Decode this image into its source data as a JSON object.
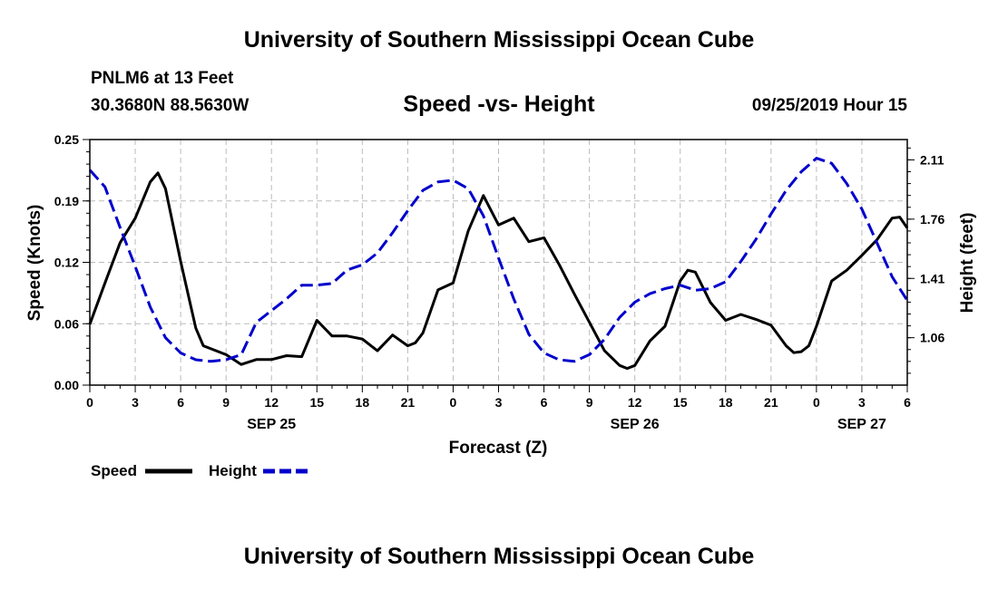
{
  "header": {
    "title": "University of Southern Mississippi Ocean Cube",
    "station": "PNLM6 at 13 Feet",
    "coordinates": "30.3680N 88.5630W",
    "datetime": "09/25/2019 Hour 15"
  },
  "footer": {
    "title": "University of Southern Mississippi Ocean Cube"
  },
  "chart_data": {
    "type": "line",
    "title": "Speed -vs- Height",
    "xlabel": "Forecast (Z)",
    "ylabel_left": "Speed (Knots)",
    "ylabel_right": "Height (feet)",
    "x_ticks": [
      {
        "t": 0,
        "label": "0"
      },
      {
        "t": 3,
        "label": "3"
      },
      {
        "t": 6,
        "label": "6"
      },
      {
        "t": 9,
        "label": "9"
      },
      {
        "t": 12,
        "label": "12"
      },
      {
        "t": 15,
        "label": "15"
      },
      {
        "t": 18,
        "label": "18"
      },
      {
        "t": 21,
        "label": "21"
      },
      {
        "t": 24,
        "label": "0"
      },
      {
        "t": 27,
        "label": "3"
      },
      {
        "t": 30,
        "label": "6"
      },
      {
        "t": 33,
        "label": "9"
      },
      {
        "t": 36,
        "label": "12"
      },
      {
        "t": 39,
        "label": "15"
      },
      {
        "t": 42,
        "label": "18"
      },
      {
        "t": 45,
        "label": "21"
      },
      {
        "t": 48,
        "label": "0"
      },
      {
        "t": 51,
        "label": "3"
      },
      {
        "t": 54,
        "label": "6"
      }
    ],
    "date_labels": [
      {
        "t": 12,
        "label": "SEP 25"
      },
      {
        "t": 36,
        "label": "SEP 26"
      },
      {
        "t": 51,
        "label": "SEP 27"
      }
    ],
    "xlim": [
      0,
      54
    ],
    "ylim_left": [
      0,
      0.25
    ],
    "yticks_left": [
      "0.00",
      "0.06",
      "0.12",
      "0.19",
      "0.25"
    ],
    "yticks_left_values": [
      0,
      0.0625,
      0.125,
      0.1875,
      0.25
    ],
    "ylim_right": [
      0.78,
      2.23
    ],
    "yticks_right": [
      "1.06",
      "1.41",
      "1.76",
      "2.11"
    ],
    "yticks_right_values": [
      1.06,
      1.41,
      1.76,
      2.11
    ],
    "grid": true,
    "legend": {
      "position": "bottom-left"
    },
    "series": [
      {
        "name": "Speed",
        "axis": "left",
        "color": "#000000",
        "dash": "solid",
        "points": [
          [
            0,
            0.062
          ],
          [
            1,
            0.104
          ],
          [
            2,
            0.145
          ],
          [
            3,
            0.17
          ],
          [
            4,
            0.207
          ],
          [
            4.5,
            0.216
          ],
          [
            5,
            0.2
          ],
          [
            6,
            0.126
          ],
          [
            7,
            0.058
          ],
          [
            7.5,
            0.04
          ],
          [
            8,
            0.037
          ],
          [
            9,
            0.031
          ],
          [
            9.5,
            0.026
          ],
          [
            10,
            0.021
          ],
          [
            11,
            0.026
          ],
          [
            12,
            0.026
          ],
          [
            13,
            0.03
          ],
          [
            14,
            0.029
          ],
          [
            15,
            0.066
          ],
          [
            16,
            0.05
          ],
          [
            17,
            0.05
          ],
          [
            18,
            0.047
          ],
          [
            19,
            0.035
          ],
          [
            20,
            0.051
          ],
          [
            21,
            0.04
          ],
          [
            21.5,
            0.043
          ],
          [
            22,
            0.053
          ],
          [
            23,
            0.097
          ],
          [
            24,
            0.104
          ],
          [
            25,
            0.157
          ],
          [
            26,
            0.193
          ],
          [
            27,
            0.163
          ],
          [
            28,
            0.17
          ],
          [
            29,
            0.146
          ],
          [
            30,
            0.15
          ],
          [
            31,
            0.123
          ],
          [
            32,
            0.093
          ],
          [
            33,
            0.064
          ],
          [
            34,
            0.035
          ],
          [
            35,
            0.02
          ],
          [
            35.5,
            0.017
          ],
          [
            36,
            0.02
          ],
          [
            37,
            0.045
          ],
          [
            38,
            0.06
          ],
          [
            39,
            0.106
          ],
          [
            39.5,
            0.117
          ],
          [
            40,
            0.115
          ],
          [
            41,
            0.084
          ],
          [
            42,
            0.066
          ],
          [
            43,
            0.072
          ],
          [
            44,
            0.067
          ],
          [
            45,
            0.061
          ],
          [
            46,
            0.04
          ],
          [
            46.5,
            0.033
          ],
          [
            47,
            0.034
          ],
          [
            47.5,
            0.04
          ],
          [
            48,
            0.06
          ],
          [
            49,
            0.106
          ],
          [
            50,
            0.117
          ],
          [
            51,
            0.132
          ],
          [
            52,
            0.148
          ],
          [
            53,
            0.17
          ],
          [
            53.5,
            0.171
          ],
          [
            54,
            0.16
          ]
        ]
      },
      {
        "name": "Height",
        "axis": "right",
        "color": "#0000cc",
        "dash": "dashed",
        "points": [
          [
            0,
            2.05
          ],
          [
            1,
            1.95
          ],
          [
            2,
            1.71
          ],
          [
            3,
            1.48
          ],
          [
            4,
            1.24
          ],
          [
            5,
            1.06
          ],
          [
            6,
            0.97
          ],
          [
            7,
            0.93
          ],
          [
            8,
            0.92
          ],
          [
            9,
            0.93
          ],
          [
            10,
            0.96
          ],
          [
            11,
            1.15
          ],
          [
            12,
            1.22
          ],
          [
            13,
            1.29
          ],
          [
            14,
            1.37
          ],
          [
            15,
            1.37
          ],
          [
            16,
            1.38
          ],
          [
            17,
            1.46
          ],
          [
            18,
            1.49
          ],
          [
            19,
            1.56
          ],
          [
            20,
            1.68
          ],
          [
            21,
            1.81
          ],
          [
            22,
            1.93
          ],
          [
            23,
            1.98
          ],
          [
            24,
            1.99
          ],
          [
            25,
            1.94
          ],
          [
            26,
            1.78
          ],
          [
            27,
            1.53
          ],
          [
            28,
            1.29
          ],
          [
            29,
            1.08
          ],
          [
            30,
            0.97
          ],
          [
            31,
            0.93
          ],
          [
            32,
            0.92
          ],
          [
            33,
            0.96
          ],
          [
            34,
            1.05
          ],
          [
            35,
            1.18
          ],
          [
            36,
            1.27
          ],
          [
            37,
            1.32
          ],
          [
            38,
            1.35
          ],
          [
            39,
            1.37
          ],
          [
            40,
            1.34
          ],
          [
            41,
            1.35
          ],
          [
            42,
            1.39
          ],
          [
            43,
            1.51
          ],
          [
            44,
            1.64
          ],
          [
            45,
            1.79
          ],
          [
            46,
            1.93
          ],
          [
            47,
            2.04
          ],
          [
            48,
            2.12
          ],
          [
            49,
            2.09
          ],
          [
            50,
            1.97
          ],
          [
            51,
            1.82
          ],
          [
            52,
            1.62
          ],
          [
            53,
            1.42
          ],
          [
            54,
            1.28
          ]
        ]
      }
    ]
  }
}
